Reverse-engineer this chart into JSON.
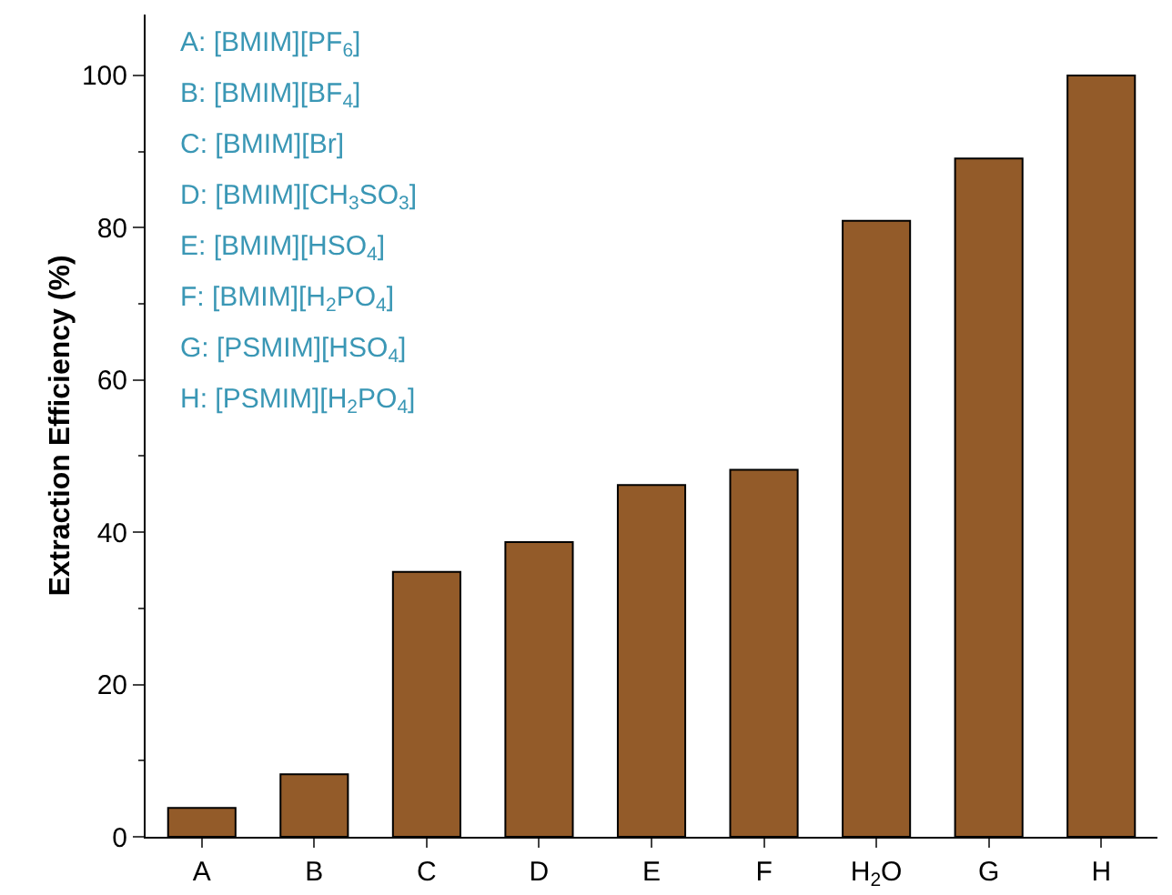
{
  "chart_data": {
    "type": "bar",
    "ylabel": "Extraction Efficiency (%)",
    "categories": [
      "A",
      "B",
      "C",
      "D",
      "E",
      "F",
      "H$_{2}$O",
      "G",
      "H"
    ],
    "values": [
      3.8,
      8.2,
      34.8,
      38.7,
      46.2,
      48.2,
      80.9,
      89.1,
      100
    ],
    "color": "#935b29",
    "ylim": [
      0,
      108
    ],
    "yticks": [
      0,
      20,
      40,
      60,
      80,
      100
    ],
    "grid": false,
    "legend": false,
    "annotations": [
      "A: [BMIM][PF$_{6}$]",
      "B: [BMIM][BF$_{4}$]",
      "C: [BMIM][Br]",
      "D: [BMIM][CH$_{3}$SO$_{3}$]",
      "E: [BMIM][HSO$_{4}$]",
      "F: [BMIM][H$_{2}$PO$_{4}$]",
      "G: [PSMIM][HSO$_{4}$]",
      "H: [PSMIM][H$_{2}$PO$_{4}$]"
    ]
  }
}
